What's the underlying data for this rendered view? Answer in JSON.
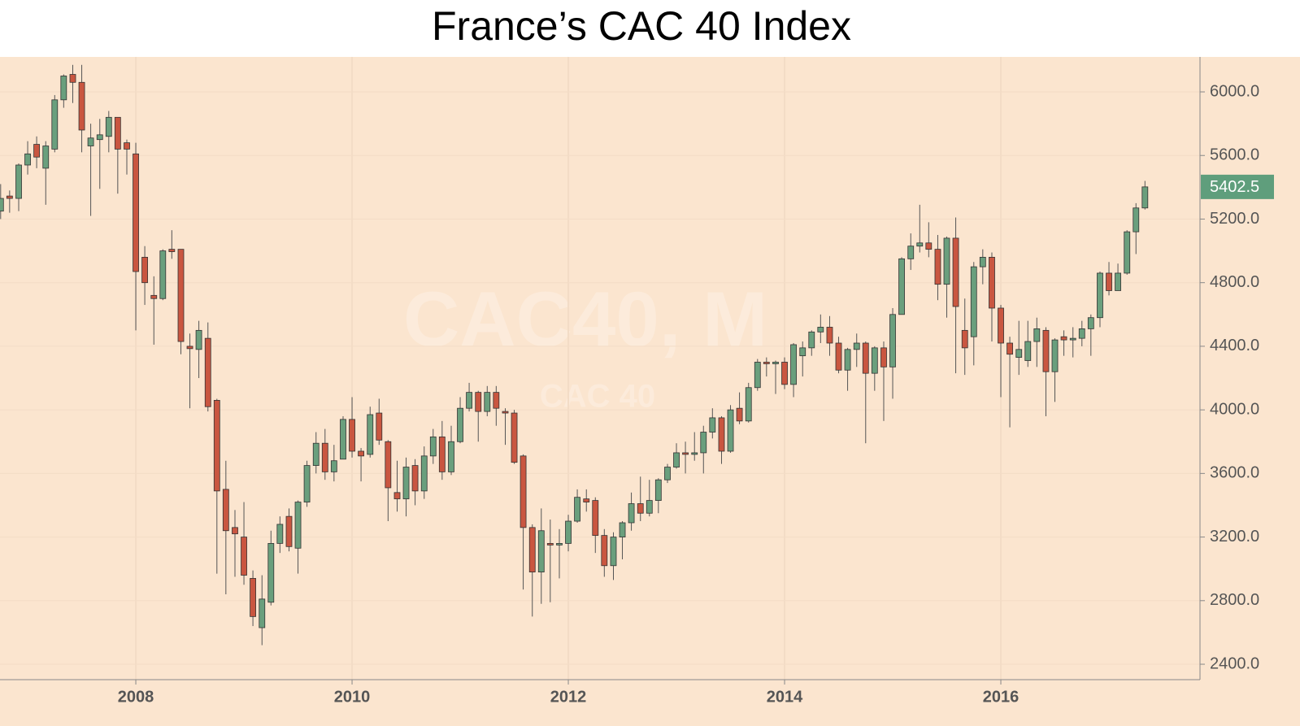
{
  "chart_data": {
    "type": "candlestick",
    "title": "France’s CAC 40 Index",
    "watermark": [
      "CAC40, M",
      "CAC 40"
    ],
    "up_color": "#6a9f7d",
    "down_color": "#c95640",
    "last_label_color": "#5f9e7c",
    "grid": true,
    "xlim": [
      2006.744,
      2017.842
    ],
    "xticks": [
      2008,
      2010,
      2012,
      2014,
      2016
    ],
    "ylim": [
      2303,
      6220
    ],
    "yticks": [
      {
        "value": 2400,
        "label": "2400.0"
      },
      {
        "value": 2800,
        "label": "2800.0"
      },
      {
        "value": 3200,
        "label": "3200.0"
      },
      {
        "value": 3600,
        "label": "3600.0"
      },
      {
        "value": 4000,
        "label": "4000.0"
      },
      {
        "value": 4400,
        "label": "4400.0"
      },
      {
        "value": 4800,
        "label": "4800.0"
      },
      {
        "value": 5200,
        "label": "5200.0"
      },
      {
        "value": 5600,
        "label": "5600.0"
      },
      {
        "value": 6000,
        "label": "6000.0"
      }
    ],
    "x": [
      2006.75,
      2006.833,
      2006.917,
      2007,
      2007.083,
      2007.167,
      2007.25,
      2007.333,
      2007.417,
      2007.5,
      2007.583,
      2007.667,
      2007.75,
      2007.833,
      2007.917,
      2008,
      2008.083,
      2008.167,
      2008.25,
      2008.333,
      2008.417,
      2008.5,
      2008.583,
      2008.667,
      2008.75,
      2008.833,
      2008.917,
      2009,
      2009.083,
      2009.167,
      2009.25,
      2009.333,
      2009.417,
      2009.5,
      2009.583,
      2009.667,
      2009.75,
      2009.833,
      2009.917,
      2010,
      2010.083,
      2010.167,
      2010.25,
      2010.333,
      2010.417,
      2010.5,
      2010.583,
      2010.667,
      2010.75,
      2010.833,
      2010.917,
      2011,
      2011.083,
      2011.167,
      2011.25,
      2011.333,
      2011.417,
      2011.5,
      2011.583,
      2011.667,
      2011.75,
      2011.833,
      2011.917,
      2012,
      2012.083,
      2012.167,
      2012.25,
      2012.333,
      2012.417,
      2012.5,
      2012.583,
      2012.667,
      2012.75,
      2012.833,
      2012.917,
      2013,
      2013.083,
      2013.167,
      2013.25,
      2013.333,
      2013.417,
      2013.5,
      2013.583,
      2013.667,
      2013.75,
      2013.833,
      2013.917,
      2014,
      2014.083,
      2014.167,
      2014.25,
      2014.333,
      2014.417,
      2014.5,
      2014.583,
      2014.667,
      2014.75,
      2014.833,
      2014.917,
      2015,
      2015.083,
      2015.167,
      2015.25,
      2015.333,
      2015.417,
      2015.5,
      2015.583,
      2015.667,
      2015.75,
      2015.833,
      2015.917,
      2016,
      2016.083,
      2016.167,
      2016.25,
      2016.333,
      2016.417,
      2016.5,
      2016.583,
      2016.667,
      2016.75,
      2016.833,
      2016.917,
      2017,
      2017.083,
      2017.167,
      2017.25,
      2017.333
    ],
    "open": [
      5250,
      5345,
      5330,
      5540,
      5670,
      5520,
      5640,
      5950,
      6110,
      6060,
      5660,
      5700,
      5720,
      5840,
      5680,
      5610,
      4960,
      4720,
      4700,
      5010,
      5010,
      4400,
      4380,
      4450,
      4060,
      3500,
      3260,
      3200,
      2940,
      2630,
      2790,
      3160,
      3330,
      3130,
      3420,
      3650,
      3790,
      3610,
      3690,
      3940,
      3740,
      3720,
      3980,
      3800,
      3480,
      3440,
      3650,
      3490,
      3710,
      3830,
      3610,
      3800,
      4010,
      4110,
      3990,
      4110,
      3990,
      3980,
      3710,
      3260,
      2980,
      3160,
      3150,
      3160,
      3300,
      3440,
      3430,
      3210,
      3020,
      3200,
      3290,
      3410,
      3350,
      3430,
      3560,
      3640,
      3730,
      3720,
      3730,
      3860,
      3950,
      3740,
      4010,
      3930,
      4140,
      4300,
      4290,
      4300,
      4160,
      4340,
      4390,
      4490,
      4520,
      4420,
      4250,
      4380,
      4420,
      4230,
      4390,
      4270,
      4600,
      4950,
      5030,
      5050,
      5010,
      4790,
      5080,
      4500,
      4460,
      4900,
      4960,
      4640,
      4420,
      4330,
      4310,
      4430,
      4500,
      4240,
      4460,
      4440,
      4450,
      4510,
      4580,
      4860,
      4750,
      4860,
      5120,
      5270
    ],
    "high": [
      5420,
      5380,
      5550,
      5690,
      5720,
      5690,
      5980,
      6110,
      6170,
      6170,
      5800,
      5830,
      5880,
      5840,
      5700,
      5680,
      5030,
      4840,
      5010,
      5130,
      5010,
      4480,
      4560,
      4550,
      4070,
      3680,
      3370,
      3420,
      2990,
      2960,
      3240,
      3330,
      3380,
      3430,
      3680,
      3860,
      3880,
      3780,
      3960,
      4080,
      3760,
      4020,
      4070,
      3810,
      3680,
      3700,
      3690,
      3770,
      3880,
      3930,
      3900,
      4080,
      4170,
      4120,
      4150,
      4150,
      4010,
      4000,
      3720,
      3280,
      3380,
      3310,
      3250,
      3340,
      3500,
      3500,
      3450,
      3250,
      3230,
      3300,
      3480,
      3580,
      3560,
      3570,
      3660,
      3790,
      3800,
      3860,
      3900,
      4010,
      3960,
      4030,
      4110,
      4170,
      4320,
      4330,
      4310,
      4330,
      4420,
      4430,
      4500,
      4600,
      4590,
      4460,
      4390,
      4480,
      4430,
      4400,
      4430,
      4640,
      4960,
      5110,
      5290,
      5180,
      5100,
      5090,
      5210,
      4700,
      4930,
      5010,
      4990,
      4660,
      4460,
      4560,
      4560,
      4580,
      4520,
      4450,
      4500,
      4520,
      4560,
      4600,
      4870,
      4930,
      4920,
      5130,
      5300,
      5440
    ],
    "low": [
      5200,
      5240,
      5250,
      5480,
      5520,
      5290,
      5620,
      5900,
      5930,
      5620,
      5220,
      5390,
      5620,
      5360,
      5480,
      4500,
      4660,
      4410,
      4690,
      4950,
      4350,
      4010,
      4200,
      3990,
      2970,
      2840,
      2950,
      2900,
      2640,
      2520,
      2770,
      3100,
      3110,
      2970,
      3390,
      3600,
      3560,
      3550,
      3700,
      3700,
      3550,
      3700,
      3780,
      3300,
      3360,
      3330,
      3400,
      3440,
      3660,
      3560,
      3590,
      3790,
      3990,
      3800,
      3960,
      3900,
      3780,
      3660,
      2870,
      2700,
      2780,
      2790,
      2940,
      3110,
      3290,
      3360,
      3100,
      2950,
      2930,
      3060,
      3240,
      3300,
      3330,
      3350,
      3540,
      3630,
      3600,
      3680,
      3600,
      3820,
      3660,
      3730,
      3910,
      3920,
      4120,
      4210,
      4100,
      4130,
      4080,
      4210,
      4340,
      4420,
      4340,
      4230,
      4120,
      4270,
      3790,
      4120,
      3930,
      4070,
      4600,
      4880,
      4990,
      4960,
      4690,
      4580,
      4230,
      4220,
      4280,
      4790,
      4430,
      4080,
      3890,
      4220,
      4270,
      4270,
      3960,
      4050,
      4340,
      4330,
      4400,
      4340,
      4520,
      4720,
      4760,
      4850,
      4980,
      5260
    ],
    "close": [
      5330,
      5330,
      5540,
      5610,
      5590,
      5660,
      5950,
      6100,
      6060,
      5760,
      5710,
      5730,
      5840,
      5640,
      5640,
      4870,
      4800,
      4700,
      5000,
      4995,
      4430,
      4385,
      4500,
      4020,
      3490,
      3240,
      3220,
      2960,
      2700,
      2810,
      3160,
      3280,
      3140,
      3420,
      3650,
      3790,
      3610,
      3680,
      3940,
      3740,
      3710,
      3970,
      3810,
      3510,
      3440,
      3640,
      3490,
      3710,
      3830,
      3610,
      3800,
      4010,
      4110,
      3990,
      4110,
      4010,
      3980,
      3670,
      3260,
      2980,
      3240,
      3150,
      3160,
      3300,
      3450,
      3420,
      3210,
      3020,
      3200,
      3290,
      3410,
      3350,
      3430,
      3560,
      3640,
      3730,
      3720,
      3730,
      3860,
      3950,
      3740,
      4000,
      3930,
      4140,
      4300,
      4290,
      4300,
      4160,
      4410,
      4390,
      4490,
      4520,
      4420,
      4250,
      4380,
      4420,
      4230,
      4390,
      4270,
      4600,
      4950,
      5030,
      5050,
      5010,
      4790,
      5080,
      4650,
      4390,
      4900,
      4960,
      4640,
      4420,
      4350,
      4380,
      4430,
      4510,
      4240,
      4440,
      4440,
      4450,
      4510,
      4580,
      4860,
      4750,
      4860,
      5120,
      5270,
      5402.5
    ]
  }
}
